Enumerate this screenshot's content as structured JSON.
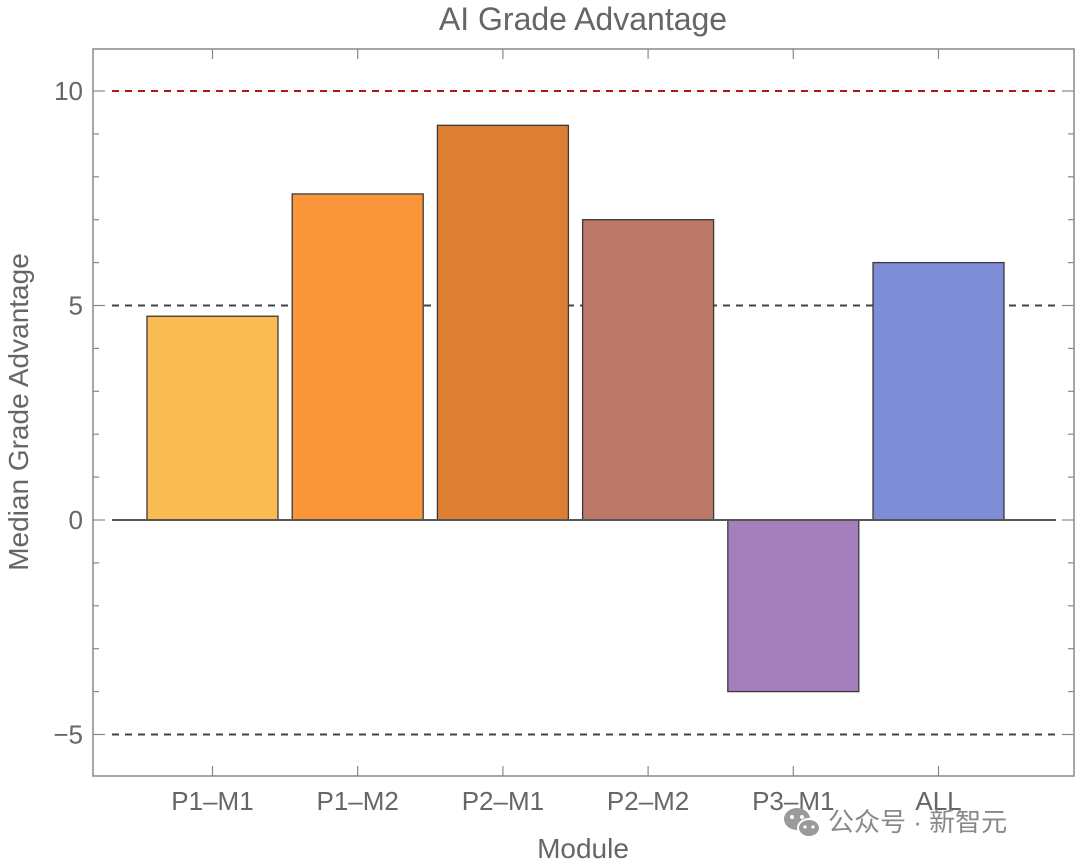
{
  "chart_data": {
    "type": "bar",
    "title": "AI Grade Advantage",
    "xlabel": "Module",
    "ylabel": "Median Grade Advantage",
    "categories": [
      "P1–M1",
      "P1–M2",
      "P2–M1",
      "P2–M2",
      "P3–M1",
      "ALL"
    ],
    "values": [
      4.75,
      7.6,
      9.2,
      7.0,
      -4.0,
      6.0
    ],
    "colors": [
      "#f9bc52",
      "#fa9539",
      "#dc7f33",
      "#bd7867",
      "#a57fbc",
      "#7f8cd6"
    ],
    "ylim": [
      -6,
      11
    ],
    "yticks": [
      -5,
      0,
      5,
      10
    ],
    "ytick_labels": [
      "−5",
      "0",
      "5",
      "10"
    ],
    "reference_lines": [
      {
        "value": 10,
        "color": "#b01616",
        "style": "dashed"
      },
      {
        "value": 5,
        "color": "#444444",
        "style": "dashed"
      },
      {
        "value": -5,
        "color": "#444444",
        "style": "dashed"
      }
    ],
    "grid": false
  },
  "watermark": {
    "text": "公众号 · 新智元",
    "icon": "wechat-icon"
  }
}
